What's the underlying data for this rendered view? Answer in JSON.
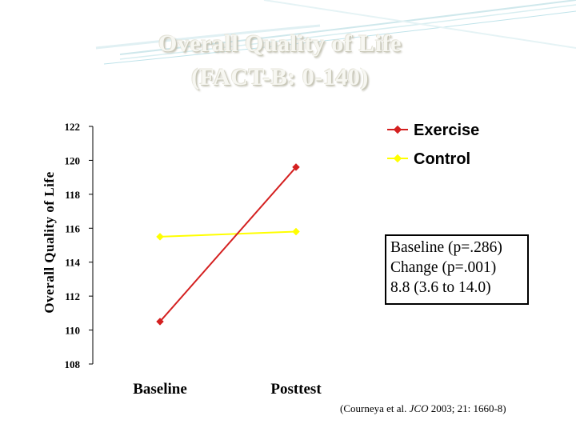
{
  "slide": {
    "title_line1": "Overall Quality of Life",
    "title_line2": "(FACT-B: 0-140)"
  },
  "chart_data": {
    "type": "line",
    "title": "Overall Quality of Life (FACT-B: 0-140)",
    "xlabel": "",
    "ylabel": "Overall Quality of Life",
    "categories": [
      "Baseline",
      "Posttest"
    ],
    "series": [
      {
        "name": "Exercise",
        "values": [
          110.5,
          119.6
        ],
        "color": "#d42020",
        "marker": "diamond"
      },
      {
        "name": "Control",
        "values": [
          115.5,
          115.8
        ],
        "color": "#ffff00",
        "marker": "diamond"
      }
    ],
    "ylim": [
      108,
      122
    ],
    "yticks": [
      108,
      110,
      112,
      114,
      116,
      118,
      120,
      122
    ],
    "grid": false,
    "legend": "top-right"
  },
  "annotation": {
    "line1": "Baseline (p=.286)",
    "line2": "Change  (p=.001)",
    "line3": "8.8 (3.6 to 14.0)"
  },
  "citation": {
    "prefix": "(Courneya et al. ",
    "journal": "JCO",
    "suffix": " 2003; 21: 1660-8)"
  }
}
